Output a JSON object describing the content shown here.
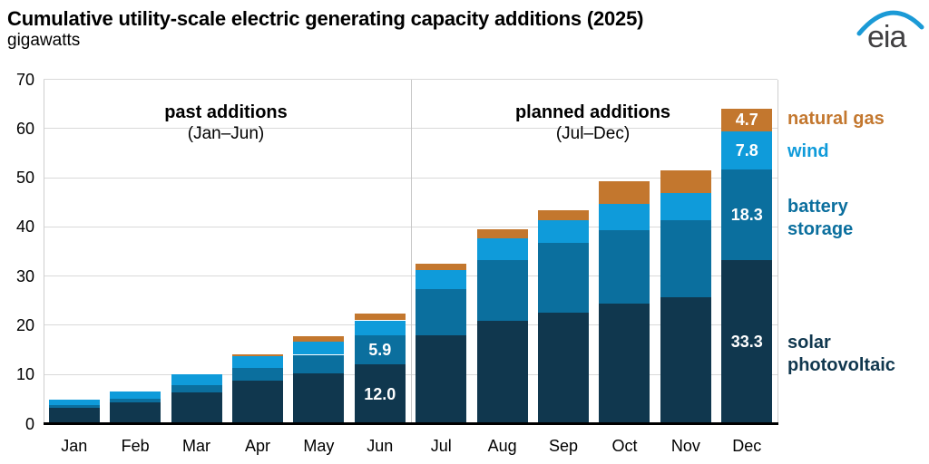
{
  "header": {
    "title": "Cumulative utility-scale electric generating capacity additions (2025)",
    "subtitle": "gigawatts",
    "logo_text": "eia",
    "logo_arc_color": "#1b9ad6",
    "logo_text_color": "#414042"
  },
  "annotations": {
    "past": {
      "line1": "past additions",
      "line2": "(Jan–Jun)"
    },
    "planned": {
      "line1": "planned additions",
      "line2": "(Jul–Dec)"
    }
  },
  "legend": [
    {
      "label": "natural gas",
      "lines": [
        "natural gas"
      ],
      "color": "#c3772e",
      "y_center": 131
    },
    {
      "label": "wind",
      "lines": [
        "wind"
      ],
      "color": "#0f9bda",
      "y_center": 167
    },
    {
      "label": "battery storage",
      "lines": [
        "battery",
        "storage"
      ],
      "color": "#0b6f9e",
      "y_center": 241
    },
    {
      "label": "solar photovoltaic",
      "lines": [
        "solar",
        "photovoltaic"
      ],
      "color": "#10374e",
      "y_center": 391
    }
  ],
  "chart_data": {
    "type": "bar",
    "stacked": true,
    "title": "Cumulative utility-scale electric generating capacity additions (2025)",
    "units": "gigawatts",
    "categories": [
      "Jan",
      "Feb",
      "Mar",
      "Apr",
      "May",
      "Jun",
      "Jul",
      "Aug",
      "Sep",
      "Oct",
      "Nov",
      "Dec"
    ],
    "series": [
      {
        "name": "solar photovoltaic",
        "color": "#10374e",
        "values": [
          3.3,
          4.3,
          6.3,
          8.7,
          10.2,
          12.0,
          18.0,
          20.9,
          22.6,
          24.4,
          25.7,
          33.3
        ]
      },
      {
        "name": "battery storage",
        "color": "#0b6f9e",
        "values": [
          0.4,
          0.7,
          1.5,
          2.6,
          3.8,
          5.9,
          9.3,
          12.4,
          14.1,
          15.0,
          15.7,
          18.3
        ]
      },
      {
        "name": "wind",
        "color": "#0f9bda",
        "values": [
          1.2,
          1.6,
          2.2,
          2.4,
          2.6,
          3.1,
          3.9,
          4.3,
          4.7,
          5.2,
          5.4,
          7.8
        ]
      },
      {
        "name": "natural gas",
        "color": "#c3772e",
        "values": [
          0.0,
          0.0,
          0.0,
          0.4,
          1.1,
          1.4,
          1.4,
          1.9,
          1.9,
          4.6,
          4.6,
          4.7
        ]
      }
    ],
    "segment_labels": [
      {
        "category": "Jun",
        "series": "battery storage",
        "text": "5.9"
      },
      {
        "category": "Jun",
        "series": "solar photovoltaic",
        "text": "12.0"
      },
      {
        "category": "Dec",
        "series": "natural gas",
        "text": "4.7"
      },
      {
        "category": "Dec",
        "series": "wind",
        "text": "7.8"
      },
      {
        "category": "Dec",
        "series": "battery storage",
        "text": "18.3"
      },
      {
        "category": "Dec",
        "series": "solar photovoltaic",
        "text": "33.3"
      }
    ],
    "ylim": [
      0,
      70
    ],
    "yticks": [
      0,
      10,
      20,
      30,
      40,
      50,
      60,
      70
    ],
    "grid": true,
    "divider_after_category": "Jun",
    "legend_position": "right"
  }
}
